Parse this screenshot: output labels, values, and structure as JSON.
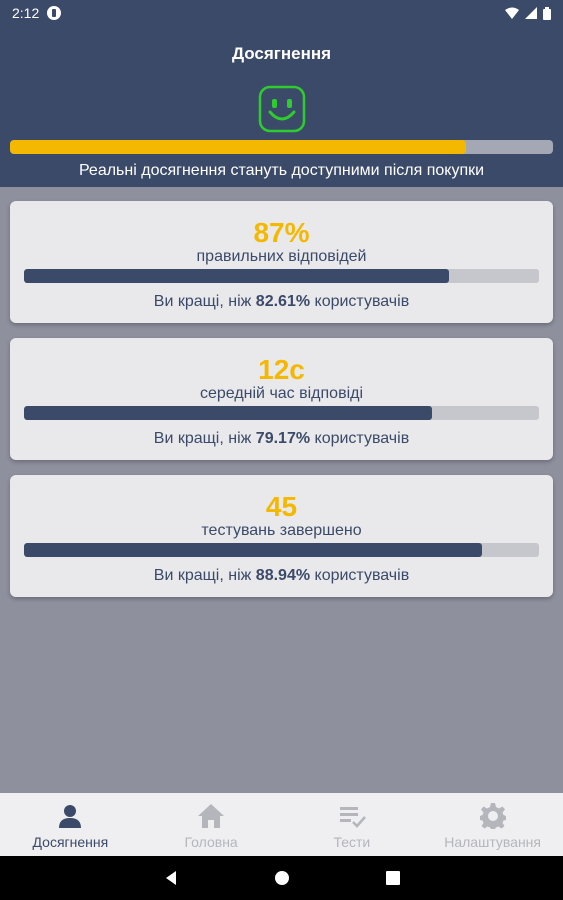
{
  "status": {
    "time": "2:12"
  },
  "header": {
    "title": "Досягнення",
    "progress": 0.84,
    "note": "Реальні досягнення стануть доступними після покупки"
  },
  "cards": [
    {
      "value": "87%",
      "label": "правильних відповідей",
      "prefix": "Ви кращі, ніж",
      "percent": "82.61%",
      "suffix": "користувачів",
      "fill": 0.8261
    },
    {
      "value": "12с",
      "label": "середній час відповіді",
      "prefix": "Ви кращі, ніж",
      "percent": "79.17%",
      "suffix": "користувачів",
      "fill": 0.7917
    },
    {
      "value": "45",
      "label": "тестувань завершено",
      "prefix": "Ви кращі, ніж",
      "percent": "88.94%",
      "suffix": "користувачів",
      "fill": 0.8894
    }
  ],
  "nav": {
    "items": [
      {
        "label": "Досягнення",
        "icon": "person-icon",
        "active": true
      },
      {
        "label": "Головна",
        "icon": "home-icon",
        "active": false
      },
      {
        "label": "Тести",
        "icon": "checklist-icon",
        "active": false
      },
      {
        "label": "Налаштування",
        "icon": "gear-icon",
        "active": false
      }
    ]
  },
  "colors": {
    "primary": "#3b4a68",
    "accent": "#f5b800",
    "smile": "#2ecc2e"
  }
}
